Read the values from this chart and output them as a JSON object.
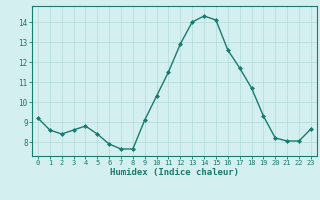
{
  "x": [
    0,
    1,
    2,
    3,
    4,
    5,
    6,
    7,
    8,
    9,
    10,
    11,
    12,
    13,
    14,
    15,
    16,
    17,
    18,
    19,
    20,
    21,
    22,
    23
  ],
  "y": [
    9.2,
    8.6,
    8.4,
    8.6,
    8.8,
    8.4,
    7.9,
    7.65,
    7.65,
    9.1,
    10.3,
    11.5,
    12.9,
    14.0,
    14.3,
    14.1,
    12.6,
    11.7,
    10.7,
    9.3,
    8.2,
    8.05,
    8.05,
    8.65
  ],
  "line_color": "#1a7a6e",
  "marker": "D",
  "marker_size": 2.0,
  "line_width": 1.0,
  "xlabel": "Humidex (Indice chaleur)",
  "xlabel_fontsize": 6.5,
  "bg_color": "#d4efef",
  "grid_color": "#b8dcdc",
  "axis_color": "#1a7a6e",
  "tick_color": "#1a7a6e",
  "ylim": [
    7.3,
    14.8
  ],
  "xlim": [
    -0.5,
    23.5
  ],
  "yticks": [
    8,
    9,
    10,
    11,
    12,
    13,
    14
  ],
  "xticks": [
    0,
    1,
    2,
    3,
    4,
    5,
    6,
    7,
    8,
    9,
    10,
    11,
    12,
    13,
    14,
    15,
    16,
    17,
    18,
    19,
    20,
    21,
    22,
    23
  ],
  "xtick_labels": [
    "0",
    "1",
    "2",
    "3",
    "4",
    "5",
    "6",
    "7",
    "8",
    "9",
    "10",
    "11",
    "12",
    "13",
    "14",
    "15",
    "16",
    "17",
    "18",
    "19",
    "20",
    "21",
    "22",
    "23"
  ]
}
